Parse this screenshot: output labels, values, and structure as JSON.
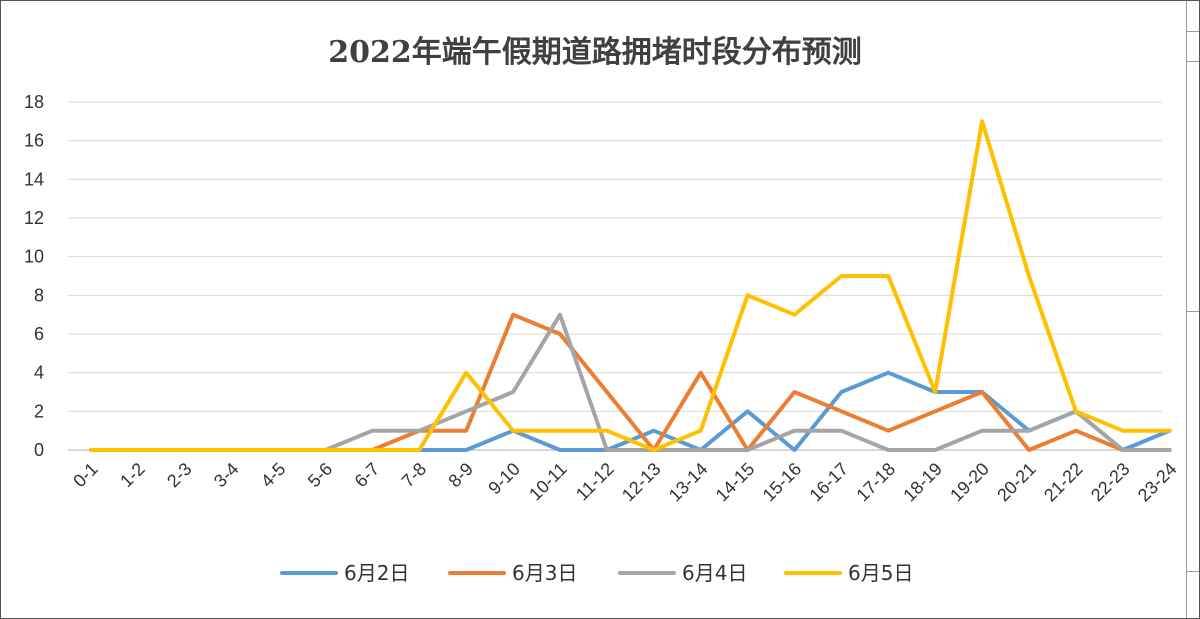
{
  "chart_data": {
    "type": "line",
    "title": "2022年端午假期道路拥堵时段分布预测",
    "xlabel": "",
    "ylabel": "",
    "ylim": [
      0,
      18
    ],
    "yticks": [
      "0",
      "2",
      "4",
      "6",
      "8",
      "10",
      "12",
      "14",
      "16",
      "18"
    ],
    "grid": true,
    "legend_position": "bottom",
    "categories": [
      "0-1",
      "1-2",
      "2-3",
      "3-4",
      "4-5",
      "5-6",
      "6-7",
      "7-8",
      "8-9",
      "9-10",
      "10-11",
      "11-12",
      "12-13",
      "13-14",
      "14-15",
      "15-16",
      "16-17",
      "17-18",
      "18-19",
      "19-20",
      "20-21",
      "21-22",
      "22-23",
      "23-24"
    ],
    "series": [
      {
        "name": "6月2日",
        "color": "#5b9bd5",
        "values": [
          0,
          0,
          0,
          0,
          0,
          0,
          0,
          0,
          0,
          1,
          0,
          0,
          1,
          0,
          2,
          0,
          3,
          4,
          3,
          3,
          1,
          2,
          0,
          1
        ]
      },
      {
        "name": "6月3日",
        "color": "#ed7d31",
        "values": [
          0,
          0,
          0,
          0,
          0,
          0,
          0,
          1,
          1,
          7,
          6,
          3,
          0,
          4,
          0,
          3,
          2,
          1,
          2,
          3,
          0,
          1,
          0,
          0
        ]
      },
      {
        "name": "6月4日",
        "color": "#a5a5a5",
        "values": [
          0,
          0,
          0,
          0,
          0,
          0,
          1,
          1,
          2,
          3,
          7,
          0,
          0,
          0,
          0,
          1,
          1,
          0,
          0,
          1,
          1,
          2,
          0,
          0
        ]
      },
      {
        "name": "6月5日",
        "color": "#ffc000",
        "values": [
          0,
          0,
          0,
          0,
          0,
          0,
          0,
          0,
          4,
          1,
          1,
          1,
          0,
          1,
          8,
          7,
          9,
          9,
          3,
          17,
          9,
          2,
          1,
          1
        ]
      }
    ]
  }
}
